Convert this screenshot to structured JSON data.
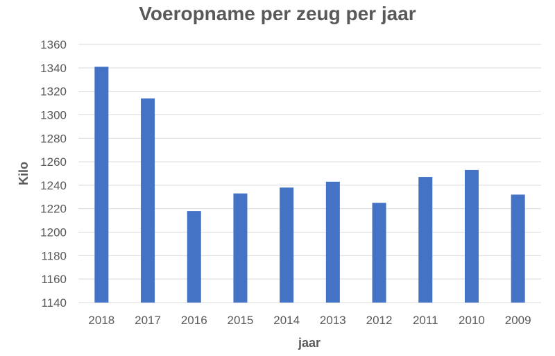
{
  "chart_data": {
    "type": "bar",
    "title": "Voeropname per zeug per jaar",
    "xlabel": "jaar",
    "ylabel": "Kilo",
    "categories": [
      "2018",
      "2017",
      "2016",
      "2015",
      "2014",
      "2013",
      "2012",
      "2011",
      "2010",
      "2009"
    ],
    "series": [
      {
        "values": [
          1341,
          1314,
          1218,
          1233,
          1238,
          1243,
          1225,
          1247,
          1253,
          1232
        ]
      }
    ],
    "ylim": [
      1140,
      1360
    ],
    "yticks": [
      1140,
      1160,
      1180,
      1200,
      1220,
      1240,
      1260,
      1280,
      1300,
      1320,
      1340,
      1360
    ],
    "grid": true,
    "legend": "none",
    "colors": {
      "bar": "#4472C4",
      "grid": "#D9D9D9",
      "text": "#595959"
    }
  }
}
